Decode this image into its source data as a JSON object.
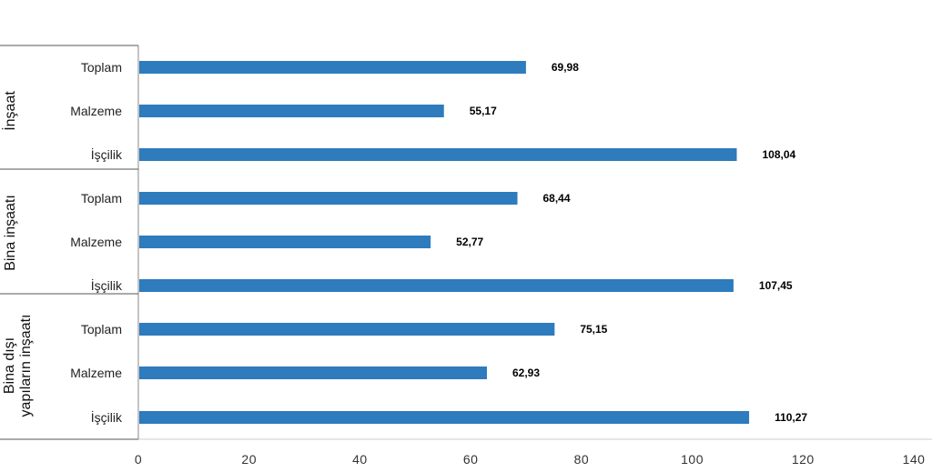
{
  "chart_data": {
    "type": "bar",
    "orientation": "horizontal",
    "bar_color": "#2e7bbd",
    "groups": [
      {
        "name": "İnşaat",
        "lines": [
          "İnşaat"
        ],
        "categories": [
          "Toplam",
          "Malzeme",
          "İşçilik"
        ],
        "values": [
          69.98,
          55.17,
          108.04
        ],
        "value_labels": [
          "69,98",
          "55,17",
          "108,04"
        ]
      },
      {
        "name": "Bina inşaatı",
        "lines": [
          "Bina inşaatı"
        ],
        "categories": [
          "Toplam",
          "Malzeme",
          "İşçilik"
        ],
        "values": [
          68.44,
          52.77,
          107.45
        ],
        "value_labels": [
          "68,44",
          "52,77",
          "107,45"
        ]
      },
      {
        "name": "Bina dışı yapıların inşaatı",
        "lines": [
          "Bina dışı",
          "yapıların inşaatı"
        ],
        "categories": [
          "Toplam",
          "Malzeme",
          "İşçilik"
        ],
        "values": [
          75.15,
          62.93,
          110.27
        ],
        "value_labels": [
          "75,15",
          "62,93",
          "110,27"
        ]
      }
    ],
    "x_ticks": [
      "0",
      "20",
      "40",
      "60",
      "80",
      "100",
      "120",
      "140"
    ],
    "xlim": [
      0,
      140
    ],
    "grid": false,
    "legend": "none"
  }
}
